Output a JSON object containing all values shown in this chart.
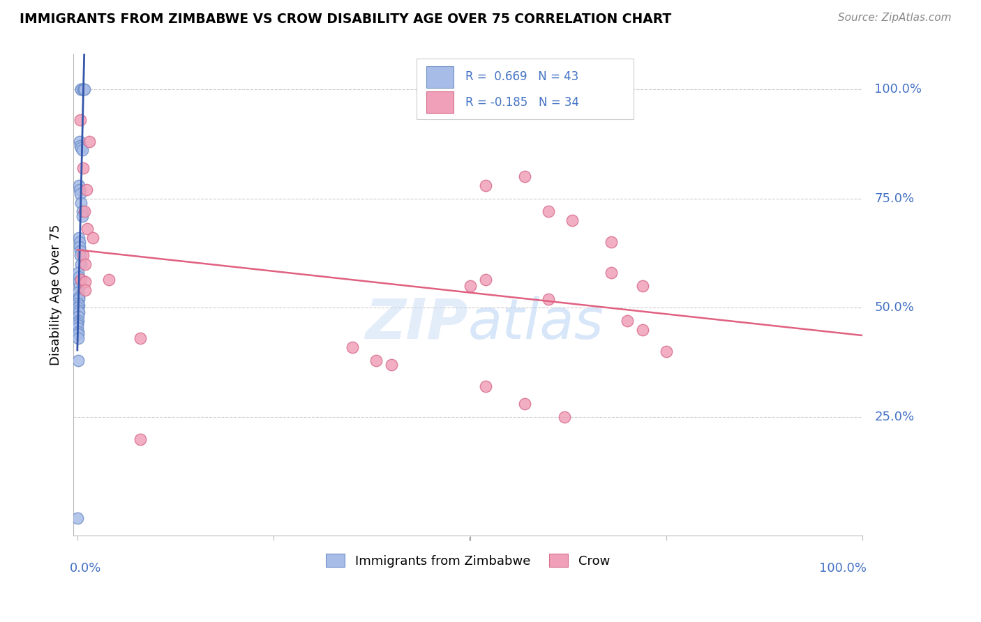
{
  "title": "IMMIGRANTS FROM ZIMBABWE VS CROW DISABILITY AGE OVER 75 CORRELATION CHART",
  "source": "Source: ZipAtlas.com",
  "ylabel": "Disability Age Over 75",
  "legend_label1": "Immigrants from Zimbabwe",
  "legend_label2": "Crow",
  "r1": 0.669,
  "n1": 43,
  "r2": -0.185,
  "n2": 34,
  "ytick_labels": [
    "25.0%",
    "50.0%",
    "75.0%",
    "100.0%"
  ],
  "ytick_values": [
    0.25,
    0.5,
    0.75,
    1.0
  ],
  "blue_color": "#a8bce8",
  "blue_edge_color": "#7090c8",
  "pink_color": "#f0a0b8",
  "pink_edge_color": "#d87090",
  "blue_line_color": "#3355aa",
  "pink_line_color": "#e06080",
  "blue_x": [
    0.005,
    0.005,
    0.007,
    0.008,
    0.009,
    0.003,
    0.004,
    0.005,
    0.006,
    0.002,
    0.003,
    0.004,
    0.005,
    0.006,
    0.006,
    0.002,
    0.003,
    0.003,
    0.004,
    0.004,
    0.005,
    0.001,
    0.002,
    0.002,
    0.003,
    0.001,
    0.002,
    0.002,
    0.001,
    0.002,
    0.001,
    0.001,
    0.002,
    0.001,
    0.001,
    0.0005,
    0.0005,
    0.0005,
    0.001,
    0.001,
    0.001,
    0.001,
    0.0002
  ],
  "blue_y": [
    1.0,
    1.0,
    1.0,
    1.0,
    1.0,
    0.88,
    0.87,
    0.865,
    0.86,
    0.78,
    0.77,
    0.76,
    0.74,
    0.72,
    0.71,
    0.66,
    0.65,
    0.64,
    0.63,
    0.62,
    0.6,
    0.58,
    0.57,
    0.56,
    0.55,
    0.535,
    0.525,
    0.52,
    0.51,
    0.505,
    0.5,
    0.495,
    0.49,
    0.48,
    0.47,
    0.465,
    0.46,
    0.455,
    0.445,
    0.44,
    0.43,
    0.38,
    0.02
  ],
  "pink_x": [
    0.004,
    0.015,
    0.007,
    0.012,
    0.009,
    0.013,
    0.02,
    0.007,
    0.01,
    0.005,
    0.01,
    0.01,
    0.04,
    0.52,
    0.57,
    0.6,
    0.63,
    0.68,
    0.72,
    0.6,
    0.7,
    0.72,
    0.75,
    0.68,
    0.38,
    0.4,
    0.52,
    0.57,
    0.62,
    0.08,
    0.08,
    0.35,
    0.5,
    0.52
  ],
  "pink_y": [
    0.93,
    0.88,
    0.82,
    0.77,
    0.72,
    0.68,
    0.66,
    0.62,
    0.6,
    0.565,
    0.56,
    0.54,
    0.565,
    0.78,
    0.8,
    0.72,
    0.7,
    0.65,
    0.55,
    0.52,
    0.47,
    0.45,
    0.4,
    0.58,
    0.38,
    0.37,
    0.32,
    0.28,
    0.25,
    0.43,
    0.2,
    0.41,
    0.55,
    0.565
  ]
}
